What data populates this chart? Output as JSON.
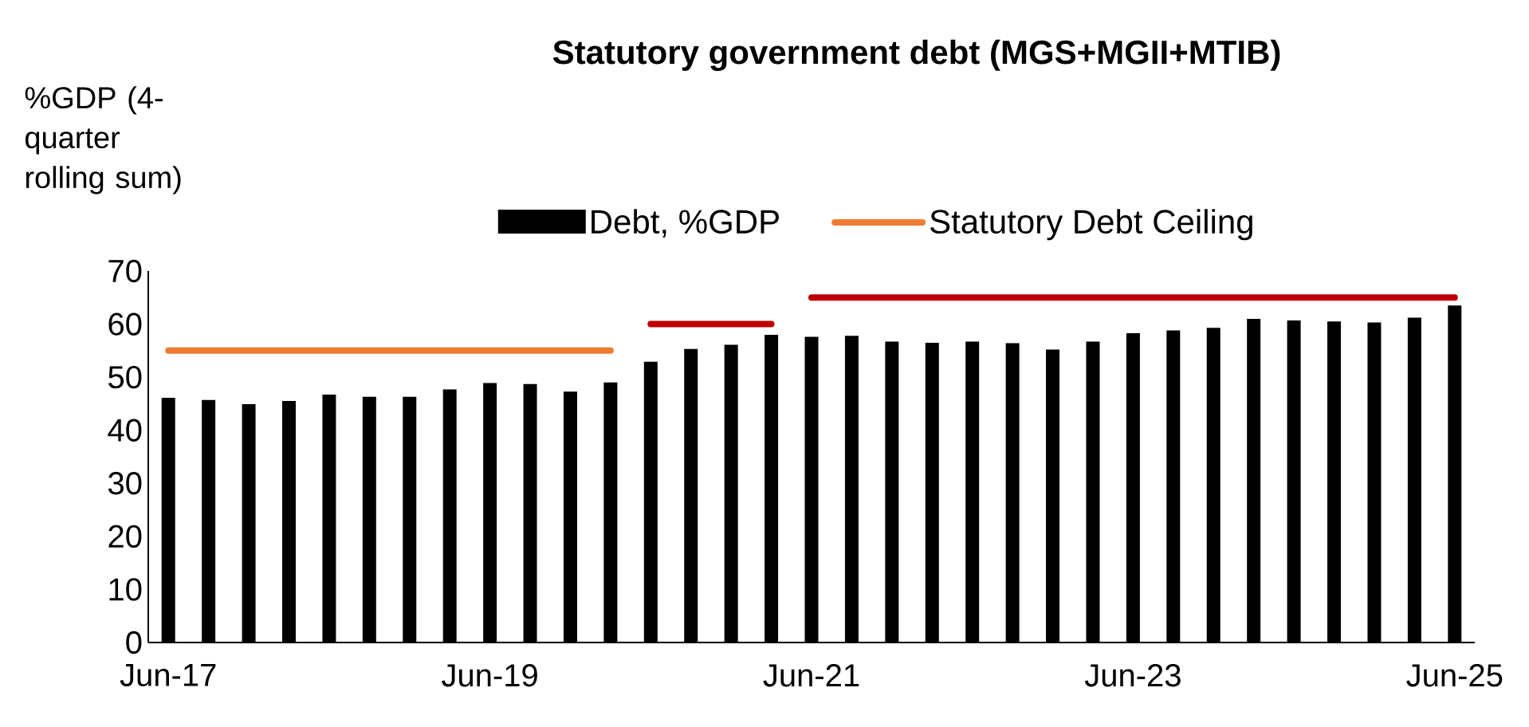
{
  "chart_data": {
    "type": "bar",
    "title": "Statutory government debt (MGS+MGII+MTIB)",
    "ylabel": "%GDP (4-quarter rolling sum)",
    "categories": [
      "Jun-17",
      null,
      null,
      null,
      null,
      null,
      null,
      null,
      "Jun-19",
      null,
      null,
      null,
      null,
      null,
      null,
      null,
      "Jun-21",
      null,
      null,
      null,
      null,
      null,
      null,
      null,
      "Jun-23",
      null,
      null,
      null,
      null,
      null,
      null,
      null,
      "Jun-25"
    ],
    "series": [
      {
        "name": "Debt, %GDP",
        "color": "#000000",
        "values": [
          46.1,
          45.7,
          44.9,
          45.5,
          46.7,
          46.3,
          46.3,
          47.7,
          48.9,
          48.7,
          47.3,
          49.0,
          52.9,
          55.3,
          56.1,
          58.0,
          57.6,
          57.8,
          56.7,
          56.5,
          56.7,
          56.4,
          55.2,
          56.7,
          58.3,
          58.8,
          59.3,
          61.0,
          60.7,
          60.5,
          60.3,
          61.2,
          63.5
        ]
      },
      {
        "name": "Statutory Debt Ceiling",
        "type": "line",
        "color": "#ed7d31",
        "values": [
          55,
          55,
          55,
          55,
          55,
          55,
          55,
          55,
          55,
          55,
          55,
          55,
          null,
          null,
          null,
          null,
          null,
          null,
          null,
          null,
          null,
          null,
          null,
          null,
          null,
          null,
          null,
          null,
          null,
          null,
          null,
          null,
          null
        ]
      },
      {
        "type": "line",
        "color": "#c00000",
        "values": [
          null,
          null,
          null,
          null,
          null,
          null,
          null,
          null,
          null,
          null,
          null,
          null,
          60,
          60,
          60,
          60,
          null,
          null,
          null,
          null,
          null,
          null,
          null,
          null,
          null,
          null,
          null,
          null,
          null,
          null,
          null,
          null,
          null
        ]
      },
      {
        "type": "line",
        "color": "#c00000",
        "values": [
          null,
          null,
          null,
          null,
          null,
          null,
          null,
          null,
          null,
          null,
          null,
          null,
          null,
          null,
          null,
          null,
          65,
          65,
          65,
          65,
          65,
          65,
          65,
          65,
          65,
          65,
          65,
          65,
          65,
          65,
          65,
          65,
          65
        ]
      }
    ],
    "ylim": [
      0,
      70
    ],
    "yticks": [
      0,
      10,
      20,
      30,
      40,
      50,
      60,
      70
    ],
    "legend": "top",
    "grid": false
  }
}
